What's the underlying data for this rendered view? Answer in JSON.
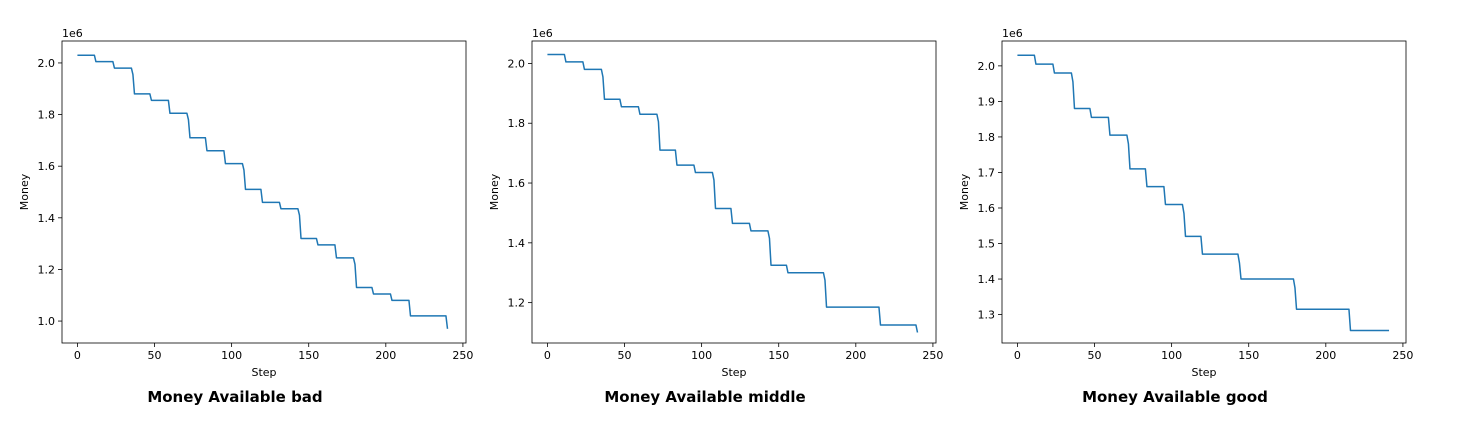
{
  "chart_data": [
    {
      "type": "line",
      "title": "Money Available bad",
      "xlabel": "Step",
      "ylabel": "Money",
      "offset_label": "1e6",
      "xlim": [
        -10,
        252
      ],
      "ylim": [
        0.915,
        2.085
      ],
      "xticks": [
        0,
        50,
        100,
        150,
        200,
        250
      ],
      "yticks": [
        1.0,
        1.2,
        1.4,
        1.6,
        1.8,
        2.0
      ],
      "ytick_labels": [
        "1.0",
        "1.2",
        "1.4",
        "1.6",
        "1.8",
        "2.0"
      ],
      "grid": false,
      "color": "#1f77b4",
      "series": [
        {
          "x": [
            0,
            11,
            12,
            23,
            24,
            35,
            36,
            37,
            47,
            48,
            59,
            60,
            71,
            72,
            73,
            83,
            84,
            95,
            96,
            107,
            108,
            109,
            119,
            120,
            131,
            132,
            143,
            144,
            145,
            155,
            156,
            167,
            168,
            179,
            180,
            181,
            191,
            192,
            203,
            204,
            215,
            216,
            239,
            240
          ],
          "y": [
            2.03,
            2.03,
            2.005,
            2.005,
            1.98,
            1.98,
            1.955,
            1.88,
            1.88,
            1.855,
            1.855,
            1.805,
            1.805,
            1.78,
            1.71,
            1.71,
            1.66,
            1.66,
            1.61,
            1.61,
            1.585,
            1.51,
            1.51,
            1.46,
            1.46,
            1.435,
            1.435,
            1.41,
            1.32,
            1.32,
            1.295,
            1.295,
            1.245,
            1.245,
            1.22,
            1.13,
            1.13,
            1.105,
            1.105,
            1.08,
            1.08,
            1.02,
            1.02,
            0.97
          ]
        }
      ]
    },
    {
      "type": "line",
      "title": "Money Available middle",
      "xlabel": "Step",
      "ylabel": "Money",
      "offset_label": "1e6",
      "xlim": [
        -10,
        252
      ],
      "ylim": [
        1.065,
        2.075
      ],
      "xticks": [
        0,
        50,
        100,
        150,
        200,
        250
      ],
      "yticks": [
        1.2,
        1.4,
        1.6,
        1.8,
        2.0
      ],
      "ytick_labels": [
        "1.2",
        "1.4",
        "1.6",
        "1.8",
        "2.0"
      ],
      "grid": false,
      "color": "#1f77b4",
      "series": [
        {
          "x": [
            0,
            11,
            12,
            23,
            24,
            35,
            36,
            37,
            47,
            48,
            59,
            60,
            71,
            72,
            73,
            83,
            84,
            95,
            96,
            107,
            108,
            109,
            119,
            120,
            131,
            132,
            143,
            144,
            145,
            155,
            156,
            179,
            180,
            181,
            215,
            216,
            239,
            240
          ],
          "y": [
            2.03,
            2.03,
            2.005,
            2.005,
            1.98,
            1.98,
            1.955,
            1.88,
            1.88,
            1.855,
            1.855,
            1.83,
            1.83,
            1.805,
            1.71,
            1.71,
            1.66,
            1.66,
            1.635,
            1.635,
            1.61,
            1.515,
            1.515,
            1.465,
            1.465,
            1.44,
            1.44,
            1.415,
            1.325,
            1.325,
            1.3,
            1.3,
            1.275,
            1.185,
            1.185,
            1.125,
            1.125,
            1.1
          ]
        }
      ]
    },
    {
      "type": "line",
      "title": "Money Available good",
      "xlabel": "Step",
      "ylabel": "Money",
      "offset_label": "1e6",
      "xlim": [
        -10,
        252
      ],
      "ylim": [
        1.22,
        2.07
      ],
      "xticks": [
        0,
        50,
        100,
        150,
        200,
        250
      ],
      "yticks": [
        1.3,
        1.4,
        1.5,
        1.6,
        1.7,
        1.8,
        1.9,
        2.0
      ],
      "ytick_labels": [
        "1.3",
        "1.4",
        "1.5",
        "1.6",
        "1.7",
        "1.8",
        "1.9",
        "2.0"
      ],
      "grid": false,
      "color": "#1f77b4",
      "series": [
        {
          "x": [
            0,
            11,
            12,
            23,
            24,
            35,
            36,
            37,
            47,
            48,
            59,
            60,
            71,
            72,
            73,
            83,
            84,
            95,
            96,
            107,
            108,
            109,
            119,
            120,
            143,
            144,
            145,
            179,
            180,
            181,
            215,
            216,
            241
          ],
          "y": [
            2.03,
            2.03,
            2.005,
            2.005,
            1.98,
            1.98,
            1.955,
            1.88,
            1.88,
            1.855,
            1.855,
            1.805,
            1.805,
            1.78,
            1.71,
            1.71,
            1.66,
            1.66,
            1.61,
            1.61,
            1.585,
            1.52,
            1.52,
            1.47,
            1.47,
            1.445,
            1.4,
            1.4,
            1.375,
            1.315,
            1.315,
            1.255,
            1.255
          ]
        }
      ]
    }
  ]
}
